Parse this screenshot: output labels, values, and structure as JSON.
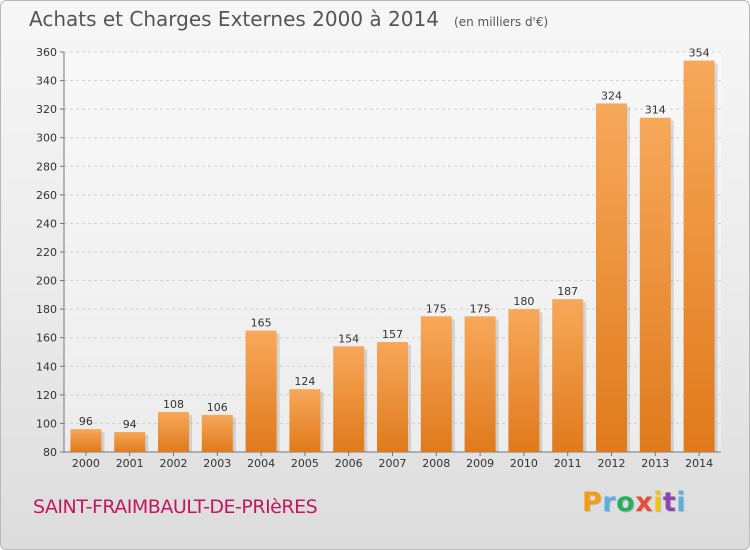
{
  "title": {
    "main": "Achats et Charges Externes 2000 à 2014",
    "unit": "(en milliers d'€)"
  },
  "town": "SAINT-FRAIMBAULT-DE-PRIèRES",
  "logo": {
    "letters": [
      "P",
      "r",
      "o",
      "x",
      "i",
      "t",
      "i"
    ],
    "colors": [
      "#f39c12",
      "#5dade2",
      "#27ae60",
      "#e74c3c",
      "#f1c40f",
      "#8e44ad",
      "#5dade2"
    ]
  },
  "colors": {
    "bar_top": "#f7a85a",
    "bar_bottom": "#e07a1c",
    "grid": "#d0d0d0"
  },
  "chart_data": {
    "type": "bar",
    "title": "Achats et Charges Externes 2000 à 2014",
    "subtitle": "(en milliers d'€)",
    "categories": [
      "2000",
      "2001",
      "2002",
      "2003",
      "2004",
      "2005",
      "2006",
      "2007",
      "2008",
      "2009",
      "2010",
      "2011",
      "2012",
      "2013",
      "2014"
    ],
    "values": [
      96,
      94,
      108,
      106,
      165,
      124,
      154,
      157,
      175,
      175,
      180,
      187,
      324,
      314,
      354
    ],
    "ylim": [
      80,
      360
    ],
    "yticks": [
      80,
      100,
      120,
      140,
      160,
      180,
      200,
      220,
      240,
      260,
      280,
      300,
      320,
      340,
      360
    ],
    "grid": true,
    "legend": "none"
  }
}
